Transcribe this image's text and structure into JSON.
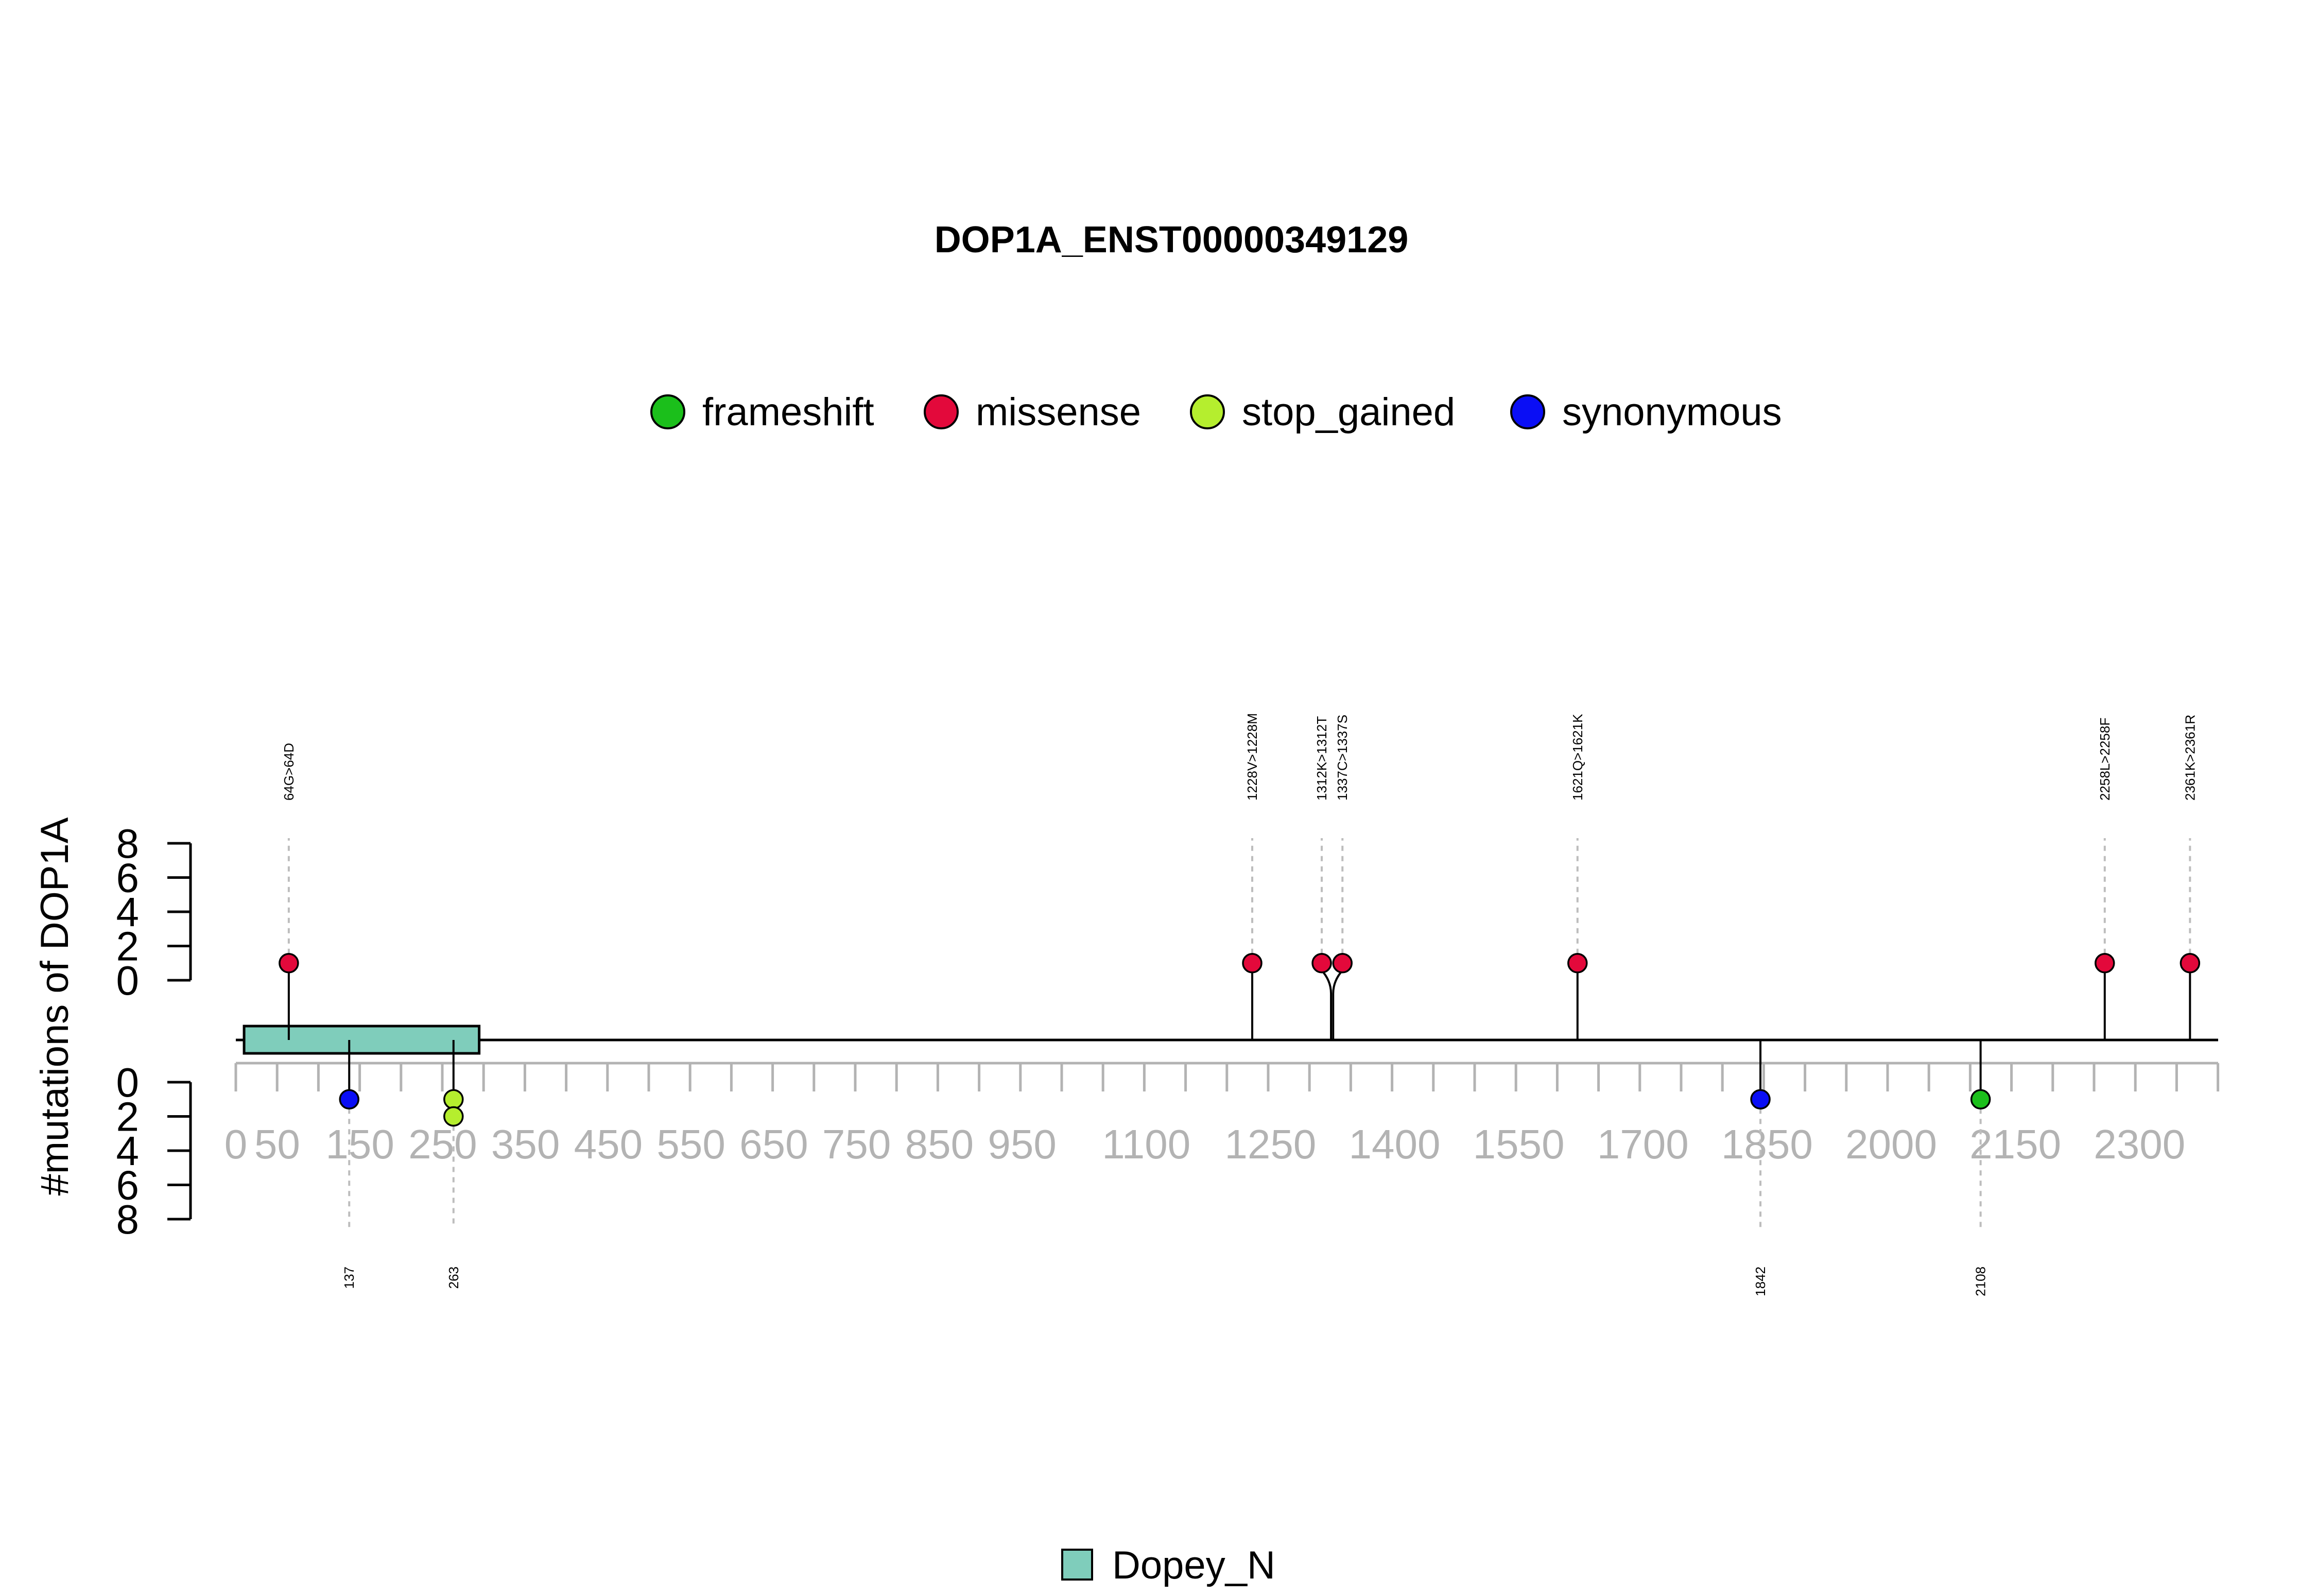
{
  "chart_data": {
    "type": "lollipop",
    "title": "DOP1A_ENST00000349129",
    "ylabel": "#mutations of DOP1A",
    "protein_length": 2395,
    "x_ticks": [
      0,
      50,
      150,
      250,
      350,
      450,
      550,
      650,
      750,
      850,
      950,
      1100,
      1250,
      1400,
      1550,
      1700,
      1850,
      2000,
      2150,
      2300
    ],
    "y_ticks_top": [
      0,
      2,
      4,
      6,
      8
    ],
    "y_ticks_bottom": [
      0,
      2,
      4,
      6,
      8
    ],
    "y_range": [
      0,
      8
    ],
    "legend": [
      {
        "name": "frameshift",
        "color": "#1bbf1b"
      },
      {
        "name": "missense",
        "color": "#e3093b"
      },
      {
        "name": "stop_gained",
        "color": "#b5ee2e"
      },
      {
        "name": "synonymous",
        "color": "#0a0ef5"
      }
    ],
    "domains": [
      {
        "name": "Dopey_N",
        "start": 10,
        "end": 294,
        "color": "#7fcdbb"
      }
    ],
    "mutations_top": [
      {
        "position": 64,
        "label": "64G>64D",
        "type": "missense",
        "count": 1
      },
      {
        "position": 1228,
        "label": "1228V>1228M",
        "type": "missense",
        "count": 1
      },
      {
        "position": 1312,
        "label": "1312K>1312T",
        "type": "missense",
        "count": 1
      },
      {
        "position": 1337,
        "label": "1337C>1337S",
        "type": "missense",
        "count": 1
      },
      {
        "position": 1621,
        "label": "1621Q>1621K",
        "type": "missense",
        "count": 1
      },
      {
        "position": 2258,
        "label": "2258L>2258F",
        "type": "missense",
        "count": 1
      },
      {
        "position": 2361,
        "label": "2361K>2361R",
        "type": "missense",
        "count": 1
      }
    ],
    "mutations_bottom": [
      {
        "position": 137,
        "label": "137",
        "type": "synonymous",
        "count": 1
      },
      {
        "position": 263,
        "label": "263",
        "type": "stop_gained",
        "count": 2
      },
      {
        "position": 1842,
        "label": "1842",
        "type": "synonymous",
        "count": 1
      },
      {
        "position": 2108,
        "label": "2108",
        "type": "frameshift",
        "count": 1
      }
    ]
  }
}
